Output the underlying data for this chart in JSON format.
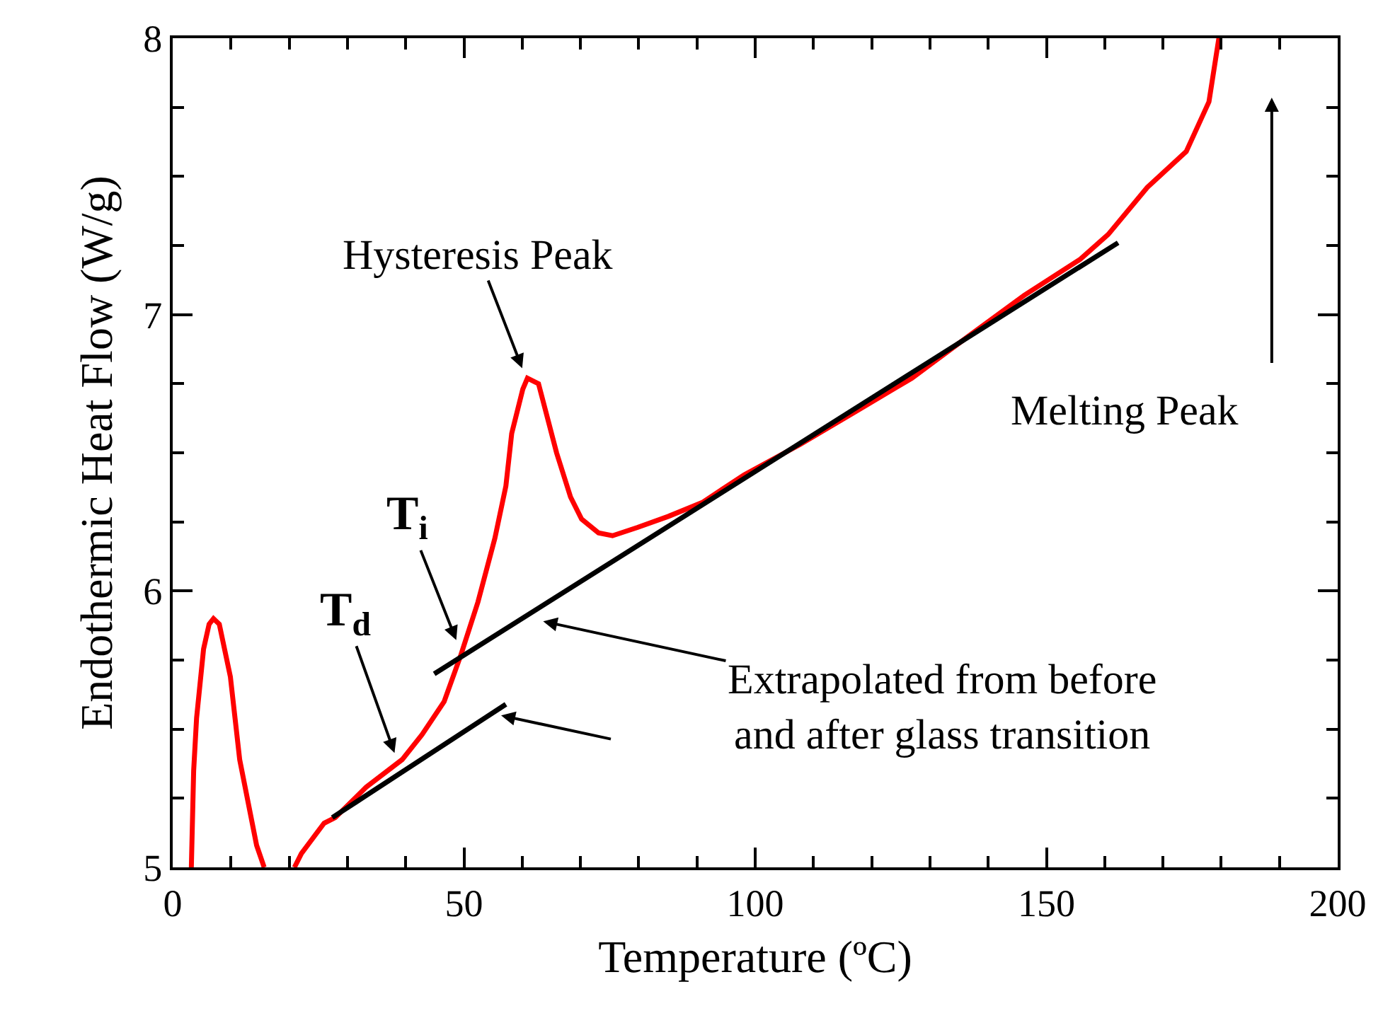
{
  "chart_data": {
    "type": "line",
    "xlabel": "Temperature (ºC)",
    "ylabel": "Endothermic Heat Flow (W/g)",
    "xlim": [
      0,
      200
    ],
    "ylim": [
      5,
      8
    ],
    "xticks": [
      0,
      {
        "value": 10,
        "label": null
      },
      {
        "value": 20,
        "label": null
      },
      {
        "value": 30,
        "label": null
      },
      {
        "value": 40,
        "label": null
      },
      50,
      {
        "value": 60,
        "label": null
      },
      {
        "value": 70,
        "label": null
      },
      {
        "value": 80,
        "label": null
      },
      {
        "value": 90,
        "label": null
      },
      100,
      {
        "value": 110,
        "label": null
      },
      {
        "value": 120,
        "label": null
      },
      {
        "value": 130,
        "label": null
      },
      {
        "value": 140,
        "label": null
      },
      150,
      {
        "value": 160,
        "label": null
      },
      {
        "value": 170,
        "label": null
      },
      {
        "value": 180,
        "label": null
      },
      {
        "value": 190,
        "label": null
      },
      200
    ],
    "yticks": [
      5,
      {
        "value": 5.25,
        "label": null
      },
      {
        "value": 5.5,
        "label": null
      },
      {
        "value": 5.75,
        "label": null
      },
      6,
      {
        "value": 6.25,
        "label": null
      },
      {
        "value": 6.5,
        "label": null
      },
      {
        "value": 6.75,
        "label": null
      },
      7,
      {
        "value": 7.25,
        "label": null
      },
      {
        "value": 7.5,
        "label": null
      },
      {
        "value": 7.75,
        "label": null
      },
      8
    ],
    "marker": "none",
    "line_style": "solid",
    "series": [
      {
        "color": "#ff0000",
        "x": [
          3.2,
          3.6,
          4.1,
          5.3,
          6.25,
          7.0,
          8.0,
          9.9,
          11.5,
          14.4,
          15.7,
          18.3,
          20.9,
          22.1,
          26.0,
          27.9,
          33.2,
          39.4,
          42.8,
          46.6,
          49.5,
          52.4,
          55.3,
          57.2,
          58.2,
          60.1,
          60.9,
          62.8,
          65.9,
          68.3,
          70.2,
          73.1,
          75.5,
          79.8,
          85.1,
          90.9,
          98.1,
          107.7,
          117.3,
          126.9,
          136.5,
          146.2,
          155.8,
          160.6,
          167.3,
          174.0,
          177.9,
          179.6
        ],
        "values": [
          5.0,
          5.35,
          5.54,
          5.79,
          5.88,
          5.9,
          5.88,
          5.69,
          5.39,
          5.08,
          5.0,
          null,
          5.0,
          5.05,
          5.16,
          5.18,
          5.29,
          5.39,
          5.48,
          5.6,
          5.77,
          5.96,
          6.19,
          6.38,
          6.57,
          6.73,
          6.77,
          6.75,
          6.5,
          6.34,
          6.26,
          6.21,
          6.2,
          6.23,
          6.27,
          6.32,
          6.42,
          6.53,
          6.65,
          6.77,
          6.92,
          7.07,
          7.2,
          7.29,
          7.46,
          7.59,
          7.77,
          8.0
        ]
      },
      {
        "color": "#000000",
        "x": [
          27.4,
          57.2
        ],
        "values": [
          5.18,
          5.59
        ]
      },
      {
        "color": "#000000",
        "x": [
          44.9,
          162.3
        ],
        "values": [
          5.7,
          7.26
        ]
      }
    ],
    "annotations": [
      "Hysteresis Peak",
      "T$_{i}$",
      "T$_{d}$",
      "Extrapolated from before\nand after glass transition",
      "Melting Peak"
    ]
  }
}
